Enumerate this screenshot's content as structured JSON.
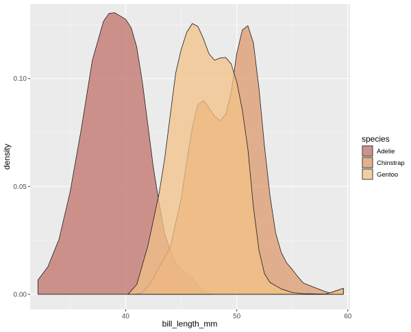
{
  "chart_data": {
    "type": "area",
    "title": "",
    "xlabel": "bill_length_mm",
    "ylabel": "density",
    "xlim": [
      31.4,
      60.2
    ],
    "ylim": [
      -0.007,
      0.1345
    ],
    "x_ticks": [
      40,
      50,
      60
    ],
    "x_tick_labels": [
      "40",
      "50",
      "60"
    ],
    "y_ticks": [
      0.0,
      0.05,
      0.1
    ],
    "y_tick_labels": [
      "0.00",
      "0.05",
      "0.10"
    ],
    "grid": true,
    "legend": {
      "title": "species",
      "position": "right"
    },
    "series": [
      {
        "name": "Adelie",
        "color": "#c1726b",
        "points": [
          [
            32.1,
            0.0066
          ],
          [
            33.0,
            0.0128
          ],
          [
            34.0,
            0.0255
          ],
          [
            35.0,
            0.0475
          ],
          [
            36.0,
            0.0765
          ],
          [
            37.0,
            0.1085
          ],
          [
            38.0,
            0.1265
          ],
          [
            38.5,
            0.1302
          ],
          [
            39.0,
            0.1305
          ],
          [
            40.0,
            0.1275
          ],
          [
            40.5,
            0.1235
          ],
          [
            41.0,
            0.1145
          ],
          [
            41.5,
            0.0985
          ],
          [
            42.0,
            0.0785
          ],
          [
            42.5,
            0.0585
          ],
          [
            43.0,
            0.0425
          ],
          [
            43.5,
            0.0285
          ],
          [
            44.0,
            0.0205
          ],
          [
            44.5,
            0.0145
          ],
          [
            45.0,
            0.0115
          ],
          [
            45.5,
            0.0098
          ],
          [
            46.0,
            0.0075
          ],
          [
            46.5,
            0.0042
          ],
          [
            47.0,
            0.0018
          ],
          [
            47.5,
            0.0004
          ],
          [
            48.0,
            0.0
          ]
        ]
      },
      {
        "name": "Chinstrap",
        "color": "#dd9a6e",
        "points": [
          [
            40.9,
            0.0
          ],
          [
            41.5,
            0.0008
          ],
          [
            42.0,
            0.0035
          ],
          [
            42.5,
            0.0075
          ],
          [
            43.0,
            0.0125
          ],
          [
            44.0,
            0.0215
          ],
          [
            45.0,
            0.0445
          ],
          [
            45.5,
            0.0615
          ],
          [
            46.0,
            0.0775
          ],
          [
            46.5,
            0.0878
          ],
          [
            47.0,
            0.0898
          ],
          [
            47.5,
            0.0865
          ],
          [
            48.0,
            0.0825
          ],
          [
            48.5,
            0.0805
          ],
          [
            49.0,
            0.0835
          ],
          [
            49.5,
            0.0935
          ],
          [
            50.0,
            0.1115
          ],
          [
            50.5,
            0.1225
          ],
          [
            51.0,
            0.1245
          ],
          [
            51.5,
            0.1165
          ],
          [
            52.0,
            0.0955
          ],
          [
            52.5,
            0.0685
          ],
          [
            53.0,
            0.0455
          ],
          [
            53.5,
            0.0285
          ],
          [
            54.0,
            0.0195
          ],
          [
            54.5,
            0.0145
          ],
          [
            55.0,
            0.0115
          ],
          [
            55.5,
            0.0082
          ],
          [
            56.0,
            0.0052
          ],
          [
            57.0,
            0.0032
          ],
          [
            58.0,
            0.0012
          ],
          [
            58.5,
            0.0005
          ],
          [
            59.0,
            0.0015
          ],
          [
            59.6,
            0.0028
          ]
        ]
      },
      {
        "name": "Gentoo",
        "color": "#f2c287",
        "points": [
          [
            40.2,
            0.0
          ],
          [
            41.0,
            0.0045
          ],
          [
            42.0,
            0.0225
          ],
          [
            43.0,
            0.0465
          ],
          [
            43.5,
            0.0625
          ],
          [
            44.0,
            0.0825
          ],
          [
            44.5,
            0.1025
          ],
          [
            45.0,
            0.1135
          ],
          [
            45.5,
            0.1215
          ],
          [
            46.0,
            0.1255
          ],
          [
            46.5,
            0.1242
          ],
          [
            47.0,
            0.1185
          ],
          [
            47.5,
            0.1115
          ],
          [
            48.0,
            0.1085
          ],
          [
            48.5,
            0.1095
          ],
          [
            49.0,
            0.1098
          ],
          [
            49.5,
            0.1068
          ],
          [
            50.0,
            0.0985
          ],
          [
            50.5,
            0.0855
          ],
          [
            51.0,
            0.0675
          ],
          [
            51.5,
            0.0405
          ],
          [
            52.0,
            0.0205
          ],
          [
            52.5,
            0.0095
          ],
          [
            53.0,
            0.0055
          ],
          [
            54.0,
            0.0025
          ],
          [
            55.0,
            0.0008
          ],
          [
            56.0,
            0.0003
          ],
          [
            58.0,
            0.0001
          ],
          [
            59.6,
            0.0028
          ]
        ]
      }
    ]
  }
}
